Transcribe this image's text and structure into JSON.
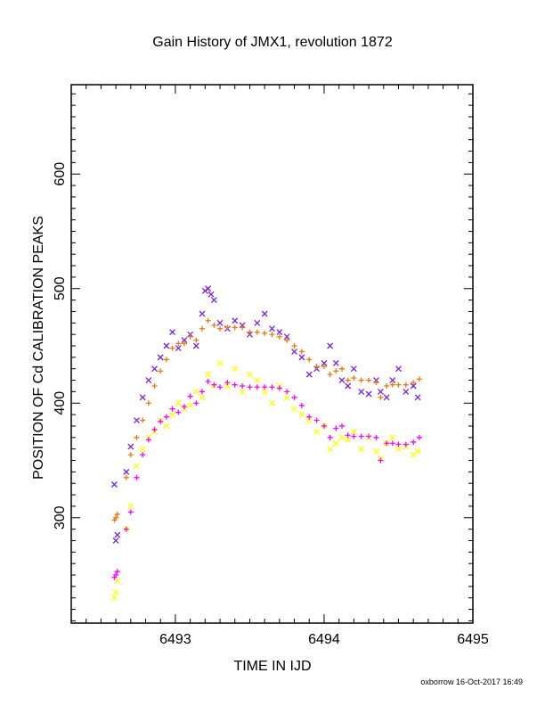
{
  "chart_data": {
    "type": "scatter",
    "title": "Gain History of JMX1, revolution 1872",
    "xlabel": "TIME IN IJD",
    "ylabel": "POSITION OF Cd CALIBRATION PEAKS",
    "xlim": [
      6492.3,
      6495.0
    ],
    "ylim": [
      208,
      678
    ],
    "xticks": [
      6493,
      6494,
      6495
    ],
    "yticks": [
      300,
      400,
      500,
      600
    ],
    "grid": false,
    "footer": "oxborrow 16-Oct-2017 16:49",
    "series": [
      {
        "marker": "x",
        "color": "#7a1fe0",
        "points": [
          [
            6492.59,
            329
          ],
          [
            6492.6,
            280
          ],
          [
            6492.61,
            285
          ],
          [
            6492.67,
            340
          ],
          [
            6492.7,
            362
          ],
          [
            6492.74,
            385
          ],
          [
            6492.78,
            405
          ],
          [
            6492.82,
            420
          ],
          [
            6492.86,
            430
          ],
          [
            6492.9,
            440
          ],
          [
            6492.94,
            450
          ],
          [
            6492.98,
            462
          ],
          [
            6493.02,
            448
          ],
          [
            6493.06,
            455
          ],
          [
            6493.1,
            460
          ],
          [
            6493.14,
            450
          ],
          [
            6493.18,
            478
          ],
          [
            6493.2,
            498
          ],
          [
            6493.22,
            500
          ],
          [
            6493.24,
            495
          ],
          [
            6493.26,
            490
          ],
          [
            6493.3,
            470
          ],
          [
            6493.35,
            465
          ],
          [
            6493.4,
            472
          ],
          [
            6493.45,
            468
          ],
          [
            6493.5,
            460
          ],
          [
            6493.55,
            470
          ],
          [
            6493.6,
            478
          ],
          [
            6493.65,
            465
          ],
          [
            6493.7,
            462
          ],
          [
            6493.75,
            458
          ],
          [
            6493.8,
            445
          ],
          [
            6493.85,
            440
          ],
          [
            6493.9,
            425
          ],
          [
            6493.95,
            430
          ],
          [
            6494.0,
            435
          ],
          [
            6494.04,
            450
          ],
          [
            6494.08,
            435
          ],
          [
            6494.12,
            420
          ],
          [
            6494.16,
            415
          ],
          [
            6494.2,
            430
          ],
          [
            6494.25,
            410
          ],
          [
            6494.3,
            408
          ],
          [
            6494.35,
            420
          ],
          [
            6494.38,
            410
          ],
          [
            6494.42,
            405
          ],
          [
            6494.46,
            420
          ],
          [
            6494.5,
            430
          ],
          [
            6494.55,
            410
          ],
          [
            6494.6,
            415
          ],
          [
            6494.63,
            405
          ]
        ]
      },
      {
        "marker": "+",
        "color": "#e87a10",
        "points": [
          [
            6492.59,
            298
          ],
          [
            6492.6,
            300
          ],
          [
            6492.61,
            303
          ],
          [
            6492.67,
            335
          ],
          [
            6492.7,
            355
          ],
          [
            6492.74,
            370
          ],
          [
            6492.78,
            385
          ],
          [
            6492.82,
            400
          ],
          [
            6492.86,
            415
          ],
          [
            6492.9,
            428
          ],
          [
            6492.94,
            438
          ],
          [
            6492.98,
            448
          ],
          [
            6493.02,
            452
          ],
          [
            6493.06,
            452
          ],
          [
            6493.1,
            458
          ],
          [
            6493.14,
            455
          ],
          [
            6493.18,
            465
          ],
          [
            6493.22,
            472
          ],
          [
            6493.26,
            468
          ],
          [
            6493.3,
            465
          ],
          [
            6493.35,
            466
          ],
          [
            6493.4,
            466
          ],
          [
            6493.45,
            466
          ],
          [
            6493.5,
            462
          ],
          [
            6493.55,
            462
          ],
          [
            6493.6,
            461
          ],
          [
            6493.65,
            460
          ],
          [
            6493.7,
            458
          ],
          [
            6493.75,
            455
          ],
          [
            6493.8,
            450
          ],
          [
            6493.85,
            445
          ],
          [
            6493.9,
            438
          ],
          [
            6493.95,
            432
          ],
          [
            6494.0,
            432
          ],
          [
            6494.04,
            425
          ],
          [
            6494.08,
            428
          ],
          [
            6494.12,
            430
          ],
          [
            6494.16,
            420
          ],
          [
            6494.2,
            422
          ],
          [
            6494.25,
            420
          ],
          [
            6494.3,
            420
          ],
          [
            6494.35,
            418
          ],
          [
            6494.38,
            405
          ],
          [
            6494.42,
            415
          ],
          [
            6494.46,
            416
          ],
          [
            6494.5,
            416
          ],
          [
            6494.55,
            416
          ],
          [
            6494.6,
            418
          ],
          [
            6494.64,
            421
          ]
        ]
      },
      {
        "marker": "x",
        "color": "#ffff00",
        "points": [
          [
            6492.59,
            230
          ],
          [
            6492.6,
            235
          ],
          [
            6492.61,
            245
          ],
          [
            6492.67,
            290
          ],
          [
            6492.7,
            310
          ],
          [
            6492.74,
            345
          ],
          [
            6492.78,
            360
          ],
          [
            6492.82,
            370
          ],
          [
            6492.86,
            375
          ],
          [
            6492.9,
            385
          ],
          [
            6492.94,
            380
          ],
          [
            6492.98,
            390
          ],
          [
            6493.02,
            400
          ],
          [
            6493.06,
            395
          ],
          [
            6493.1,
            398
          ],
          [
            6493.14,
            410
          ],
          [
            6493.18,
            405
          ],
          [
            6493.22,
            425
          ],
          [
            6493.26,
            415
          ],
          [
            6493.3,
            435
          ],
          [
            6493.35,
            415
          ],
          [
            6493.4,
            430
          ],
          [
            6493.45,
            410
          ],
          [
            6493.5,
            425
          ],
          [
            6493.55,
            420
          ],
          [
            6493.6,
            410
          ],
          [
            6493.65,
            400
          ],
          [
            6493.7,
            415
          ],
          [
            6493.75,
            405
          ],
          [
            6493.8,
            395
          ],
          [
            6493.85,
            390
          ],
          [
            6493.9,
            385
          ],
          [
            6493.95,
            375
          ],
          [
            6494.0,
            380
          ],
          [
            6494.04,
            360
          ],
          [
            6494.08,
            365
          ],
          [
            6494.12,
            370
          ],
          [
            6494.16,
            368
          ],
          [
            6494.2,
            375
          ],
          [
            6494.25,
            360
          ],
          [
            6494.3,
            370
          ],
          [
            6494.35,
            358
          ],
          [
            6494.38,
            352
          ],
          [
            6494.42,
            365
          ],
          [
            6494.46,
            370
          ],
          [
            6494.5,
            360
          ],
          [
            6494.55,
            362
          ],
          [
            6494.6,
            355
          ],
          [
            6494.63,
            358
          ]
        ]
      },
      {
        "marker": "+",
        "color": "#ff00ff",
        "points": [
          [
            6492.59,
            248
          ],
          [
            6492.6,
            250
          ],
          [
            6492.61,
            253
          ],
          [
            6492.67,
            290
          ],
          [
            6492.7,
            305
          ],
          [
            6492.74,
            335
          ],
          [
            6492.78,
            355
          ],
          [
            6492.82,
            368
          ],
          [
            6492.86,
            377
          ],
          [
            6492.9,
            384
          ],
          [
            6492.94,
            388
          ],
          [
            6492.98,
            395
          ],
          [
            6493.02,
            392
          ],
          [
            6493.06,
            397
          ],
          [
            6493.1,
            406
          ],
          [
            6493.14,
            400
          ],
          [
            6493.18,
            410
          ],
          [
            6493.22,
            419
          ],
          [
            6493.26,
            416
          ],
          [
            6493.3,
            414
          ],
          [
            6493.35,
            418
          ],
          [
            6493.4,
            416
          ],
          [
            6493.45,
            415
          ],
          [
            6493.5,
            414
          ],
          [
            6493.55,
            414
          ],
          [
            6493.6,
            414
          ],
          [
            6493.65,
            414
          ],
          [
            6493.7,
            413
          ],
          [
            6493.75,
            410
          ],
          [
            6493.8,
            405
          ],
          [
            6493.85,
            398
          ],
          [
            6493.9,
            388
          ],
          [
            6493.95,
            385
          ],
          [
            6494.0,
            380
          ],
          [
            6494.04,
            370
          ],
          [
            6494.08,
            378
          ],
          [
            6494.12,
            380
          ],
          [
            6494.16,
            372
          ],
          [
            6494.2,
            371
          ],
          [
            6494.25,
            371
          ],
          [
            6494.3,
            371
          ],
          [
            6494.35,
            370
          ],
          [
            6494.38,
            350
          ],
          [
            6494.42,
            365
          ],
          [
            6494.46,
            365
          ],
          [
            6494.5,
            364
          ],
          [
            6494.55,
            364
          ],
          [
            6494.6,
            366
          ],
          [
            6494.64,
            370
          ]
        ]
      }
    ]
  }
}
